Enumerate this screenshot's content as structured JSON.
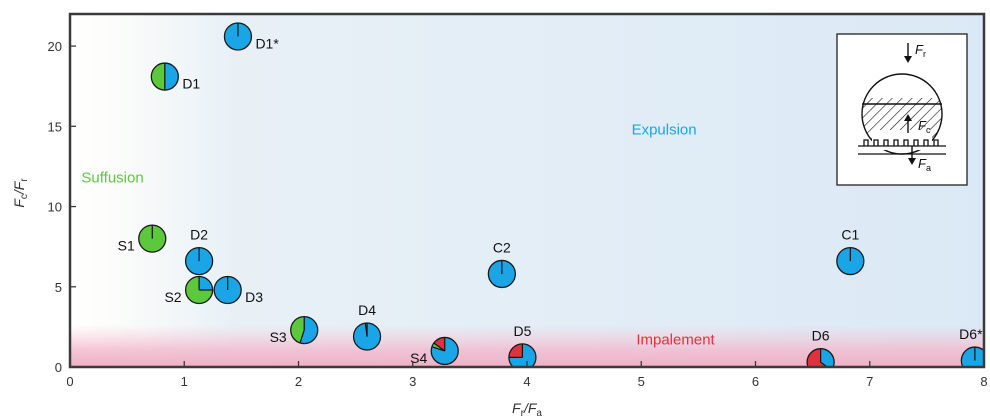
{
  "chart_data": {
    "type": "scatter",
    "title": "",
    "xlabel": {
      "main": "F",
      "sub1": "r",
      "mid": "/F",
      "sub2": "a"
    },
    "ylabel": {
      "main": "F",
      "sub1": "c",
      "mid": "/F",
      "sub2": "r"
    },
    "xlim": [
      0,
      8
    ],
    "ylim": [
      0,
      22
    ],
    "xticks": [
      "0",
      "1",
      "2",
      "3",
      "4",
      "5",
      "6",
      "7",
      "8"
    ],
    "yticks": [
      "0",
      "5",
      "10",
      "15",
      "20"
    ],
    "colors": {
      "expulsion": "#1aa6e6",
      "suffusion": "#5cc83c",
      "impalement": "#e0323c",
      "frame": "#3a3a3a"
    },
    "regions": [
      {
        "name": "Suffusion",
        "x": 0.2,
        "y": 11.5,
        "color": "#5cc83c"
      },
      {
        "name": "Expulsion",
        "x": 5.0,
        "y": 14.5,
        "color": "#1aa6e6"
      },
      {
        "name": "Impalement",
        "x": 5.0,
        "y": 1.4,
        "color": "#e0323c"
      }
    ],
    "points": [
      {
        "label": "D1*",
        "x": 1.47,
        "y": 20.6,
        "fractions": {
          "expulsion": 1.0,
          "suffusion": 0.0,
          "impalement": 0.0
        },
        "label_pos": "right"
      },
      {
        "label": "D1",
        "x": 0.83,
        "y": 18.1,
        "fractions": {
          "expulsion": 0.5,
          "suffusion": 0.5,
          "impalement": 0.0
        },
        "label_pos": "right"
      },
      {
        "label": "S1",
        "x": 0.72,
        "y": 8.0,
        "fractions": {
          "expulsion": 0.0,
          "suffusion": 1.0,
          "impalement": 0.0
        },
        "label_pos": "left"
      },
      {
        "label": "D2",
        "x": 1.13,
        "y": 6.6,
        "fractions": {
          "expulsion": 1.0,
          "suffusion": 0.0,
          "impalement": 0.0
        },
        "label_pos": "top"
      },
      {
        "label": "S2",
        "x": 1.13,
        "y": 4.8,
        "fractions": {
          "expulsion": 0.25,
          "suffusion": 0.75,
          "impalement": 0.0
        },
        "label_pos": "left"
      },
      {
        "label": "D3",
        "x": 1.38,
        "y": 4.8,
        "fractions": {
          "expulsion": 1.0,
          "suffusion": 0.0,
          "impalement": 0.0
        },
        "label_pos": "right"
      },
      {
        "label": "S3",
        "x": 2.05,
        "y": 2.3,
        "fractions": {
          "expulsion": 0.55,
          "suffusion": 0.45,
          "impalement": 0.0
        },
        "label_pos": "left"
      },
      {
        "label": "D4",
        "x": 2.6,
        "y": 1.9,
        "fractions": {
          "expulsion": 0.98,
          "suffusion": 0.02,
          "impalement": 0.0
        },
        "label_pos": "top"
      },
      {
        "label": "S4",
        "x": 3.28,
        "y": 1.0,
        "fractions": {
          "expulsion": 0.8,
          "suffusion": 0.05,
          "impalement": 0.15
        },
        "label_pos": "left"
      },
      {
        "label": "C2",
        "x": 3.78,
        "y": 5.8,
        "fractions": {
          "expulsion": 1.0,
          "suffusion": 0.0,
          "impalement": 0.0
        },
        "label_pos": "top"
      },
      {
        "label": "D5",
        "x": 3.96,
        "y": 0.6,
        "fractions": {
          "expulsion": 0.75,
          "suffusion": 0.0,
          "impalement": 0.25
        },
        "label_pos": "top"
      },
      {
        "label": "C1",
        "x": 6.83,
        "y": 6.6,
        "fractions": {
          "expulsion": 1.0,
          "suffusion": 0.0,
          "impalement": 0.0
        },
        "label_pos": "top"
      },
      {
        "label": "D6",
        "x": 6.57,
        "y": 0.3,
        "fractions": {
          "expulsion": 0.35,
          "suffusion": 0.0,
          "impalement": 0.65
        },
        "label_pos": "top"
      },
      {
        "label": "D6*",
        "x": 7.92,
        "y": 0.4,
        "fractions": {
          "expulsion": 1.0,
          "suffusion": 0.0,
          "impalement": 0.0
        },
        "label_pos": "top"
      }
    ],
    "inset": {
      "force_top": {
        "main": "F",
        "sub": "r"
      },
      "force_mid": {
        "main": "F",
        "sub": "c"
      },
      "force_bottom": {
        "main": "F",
        "sub": "a"
      }
    },
    "grid": false,
    "legend": "none"
  }
}
